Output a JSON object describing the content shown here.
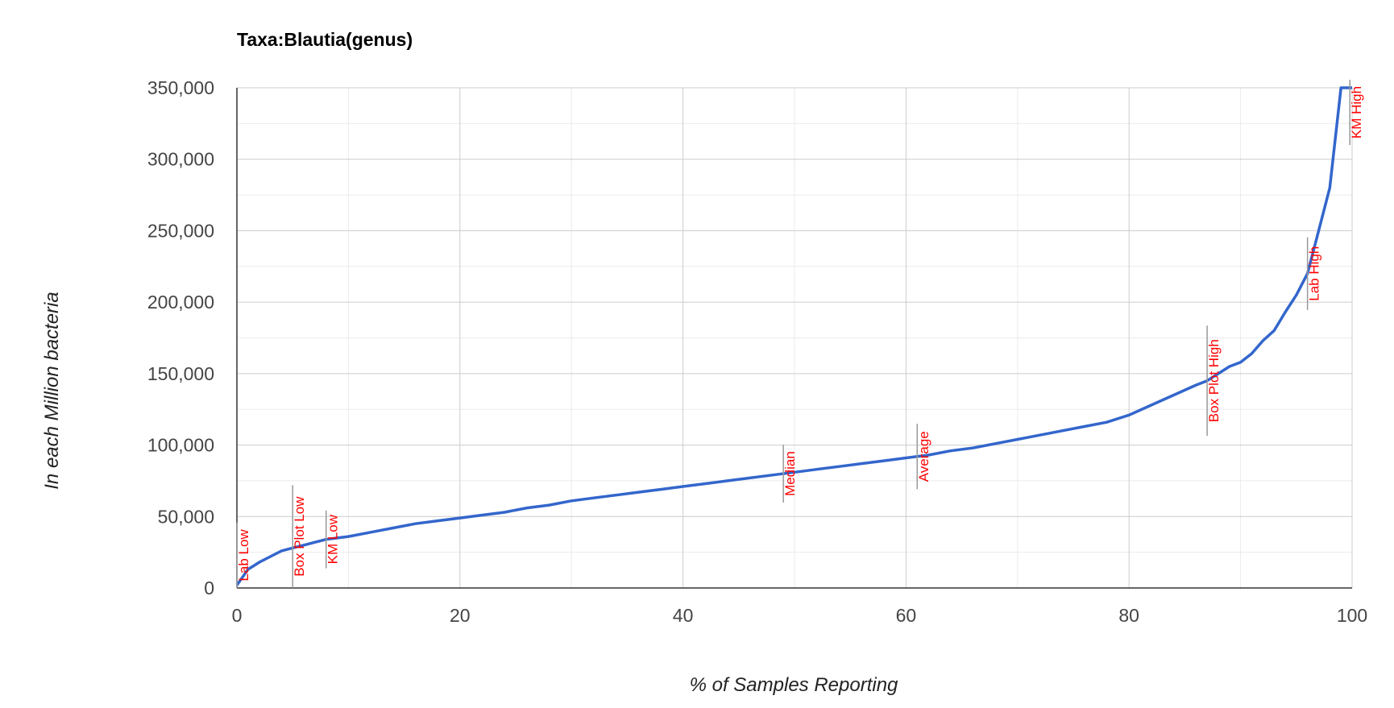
{
  "chart_data": {
    "type": "line",
    "title": "Taxa:Blautia(genus)",
    "xlabel": "% of Samples Reporting",
    "ylabel": "In each Million bacteria",
    "xlim": [
      0,
      100
    ],
    "ylim": [
      0,
      350000
    ],
    "x_ticks": [
      0,
      20,
      40,
      60,
      80,
      100
    ],
    "x_tick_labels": [
      "0",
      "20",
      "40",
      "60",
      "80",
      "100"
    ],
    "y_ticks": [
      0,
      50000,
      100000,
      150000,
      200000,
      250000,
      300000,
      350000
    ],
    "y_tick_labels": [
      "0",
      "50,000",
      "100,000",
      "150,000",
      "200,000",
      "250,000",
      "300,000",
      "350,000"
    ],
    "grid": true,
    "line_color": "#3366cc",
    "annotation_color": "#ff0000",
    "series": [
      {
        "name": "Blautia",
        "x": [
          0,
          1,
          2,
          3,
          4,
          5,
          6,
          7,
          8,
          9,
          10,
          12,
          14,
          16,
          18,
          20,
          22,
          24,
          26,
          28,
          30,
          32,
          34,
          36,
          38,
          40,
          42,
          44,
          46,
          48,
          50,
          52,
          54,
          56,
          58,
          60,
          62,
          64,
          66,
          68,
          70,
          72,
          74,
          76,
          78,
          80,
          82,
          84,
          86,
          87,
          88,
          89,
          90,
          91,
          92,
          93,
          94,
          95,
          96,
          97,
          98,
          99,
          100
        ],
        "values": [
          2000,
          13000,
          18000,
          22000,
          26000,
          28000,
          30000,
          32000,
          34000,
          35000,
          36000,
          39000,
          42000,
          45000,
          47000,
          49000,
          51000,
          53000,
          56000,
          58000,
          61000,
          63000,
          65000,
          67000,
          69000,
          71000,
          73000,
          75000,
          77000,
          79000,
          81000,
          83000,
          85000,
          87000,
          89000,
          91000,
          93000,
          96000,
          98000,
          101000,
          104000,
          107000,
          110000,
          113000,
          116000,
          121000,
          128000,
          135000,
          142000,
          145000,
          150000,
          155000,
          158000,
          164000,
          173000,
          180000,
          193000,
          205000,
          220000,
          250000,
          280000,
          350000,
          350000
        ]
      }
    ],
    "annotations": [
      {
        "label": "Lab Low",
        "x": 0
      },
      {
        "label": "Box Plot Low",
        "x": 5
      },
      {
        "label": "KM Low",
        "x": 8
      },
      {
        "label": "Median",
        "x": 49
      },
      {
        "label": "Average",
        "x": 61
      },
      {
        "label": "Box Plot High",
        "x": 87
      },
      {
        "label": "Lab High",
        "x": 96
      },
      {
        "label": "KM High",
        "x": 99.8
      }
    ]
  }
}
